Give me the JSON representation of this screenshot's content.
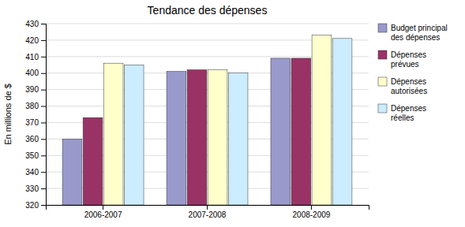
{
  "chart_data": {
    "type": "bar",
    "title": "Tendance des dépenses",
    "ylabel": "En millions de $",
    "categories": [
      "2006-2007",
      "2007-2008",
      "2008-2009"
    ],
    "series": [
      {
        "name": "Budget principal\ndes dépenses",
        "color": "#9999cc",
        "values": [
          360,
          401,
          409
        ]
      },
      {
        "name": "Dépenses\nprévues",
        "color": "#993366",
        "values": [
          373,
          402,
          409
        ]
      },
      {
        "name": "Dépenses\nautorisées",
        "color": "#ffffcc",
        "values": [
          406,
          402,
          423
        ]
      },
      {
        "name": "Dépenses\nréelles",
        "color": "#ccecff",
        "values": [
          405,
          400,
          421
        ]
      }
    ],
    "ylim": [
      320,
      430
    ],
    "yticks": [
      320,
      330,
      340,
      350,
      360,
      370,
      380,
      390,
      400,
      410,
      420,
      430
    ],
    "grid": true,
    "legend": "right"
  }
}
